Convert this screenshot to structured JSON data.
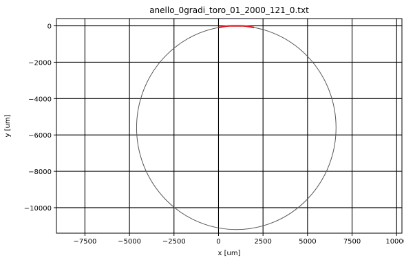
{
  "chart_data": {
    "type": "line",
    "title": "anello_0gradi_toro_01_2000_121_0.txt",
    "xlabel": "x [um]",
    "ylabel": "y [um]",
    "xlim": [
      -9100,
      10300
    ],
    "ylim": [
      -11400,
      400
    ],
    "grid": true,
    "x_ticks": [
      -7500,
      -5000,
      -2500,
      0,
      2500,
      5000,
      7500,
      10000
    ],
    "x_tick_labels": [
      "−7500",
      "−5000",
      "−2500",
      "0",
      "2500",
      "5000",
      "7500",
      "10000"
    ],
    "y_ticks": [
      0,
      -2000,
      -4000,
      -6000,
      -8000,
      -10000
    ],
    "y_tick_labels": [
      "0",
      "−2000",
      "−4000",
      "−6000",
      "−8000",
      "−10000"
    ],
    "series": [
      {
        "kind": "circle",
        "center": [
          1000,
          -5600
        ],
        "radius": 5600,
        "color": "#555555"
      },
      {
        "kind": "arc",
        "color": "#e0191c",
        "x": [
          0,
          200,
          400,
          600,
          800,
          1000,
          1200,
          1400,
          1600,
          1800,
          2000
        ],
        "y": [
          -90,
          -52,
          -23,
          -6,
          0,
          0,
          0,
          -6,
          -23,
          -52,
          -90
        ]
      }
    ]
  }
}
